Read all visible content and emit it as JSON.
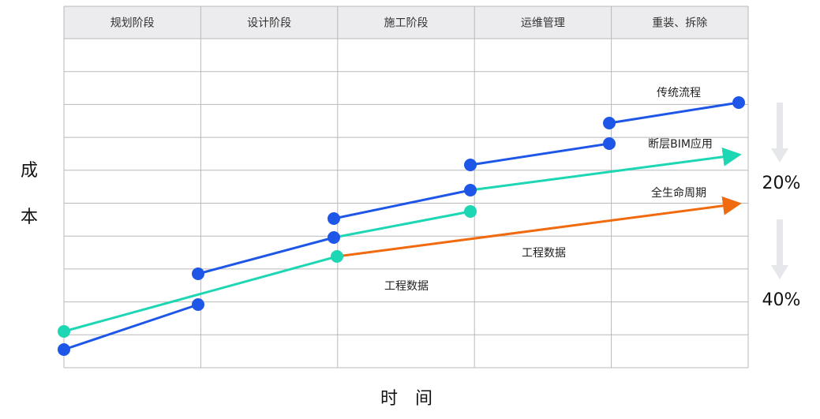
{
  "phases": [
    "规划阶段",
    "设计阶段",
    "施工阶段",
    "运维管理",
    "重装、拆除"
  ],
  "y_axis_label": [
    "成",
    "本"
  ],
  "x_axis_label": "时　间",
  "lines": {
    "traditional": "传统流程",
    "bim": "断层BIM应用",
    "lifecycle": "全生命周期"
  },
  "annotations": [
    "工程数据",
    "工程数据"
  ],
  "savings": [
    "20%",
    "40%"
  ]
}
